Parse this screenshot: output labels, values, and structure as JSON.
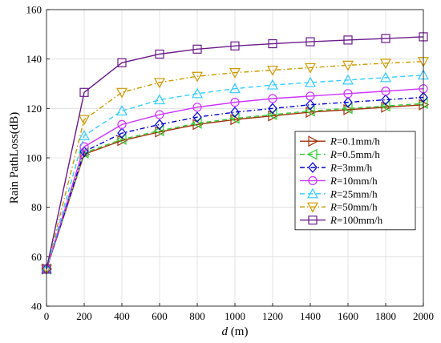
{
  "chart_data": {
    "type": "line",
    "title": "",
    "xlabel_italic": "d",
    "xlabel_rest": " (m)",
    "ylabel": "Rain PathLoss(dB)",
    "xlim": [
      0,
      2000
    ],
    "ylim": [
      40,
      160
    ],
    "xticks": [
      "0",
      "200",
      "400",
      "600",
      "800",
      "1000",
      "1200",
      "1400",
      "1600",
      "1800",
      "2000"
    ],
    "yticks": [
      "40",
      "60",
      "80",
      "100",
      "120",
      "140",
      "160"
    ],
    "grid": true,
    "legend_position": "right-middle",
    "x": [
      0,
      200,
      400,
      600,
      800,
      1000,
      1200,
      1400,
      1600,
      1800,
      2000
    ],
    "series": [
      {
        "name": "R=0.1mm/h",
        "legend_var": "R",
        "legend_rest": "=0.1mm/h",
        "color": "#A0300A",
        "marker": "triangle-right",
        "dash": "solid",
        "values": [
          55,
          101.5,
          107,
          110.5,
          113.5,
          115.5,
          117,
          118.5,
          119.5,
          120.5,
          121.5
        ]
      },
      {
        "name": "R=0.5mm/h",
        "legend_var": "R",
        "legend_rest": "=0.5mm/h",
        "color": "#33CC33",
        "marker": "triangle-left",
        "dash": "dashed",
        "values": [
          55,
          102,
          107.5,
          111,
          114,
          116,
          117.5,
          119,
          120,
          121,
          122
        ]
      },
      {
        "name": "R=3mm/h",
        "legend_var": "R",
        "legend_rest": "=3mm/h",
        "color": "#0000CC",
        "marker": "diamond",
        "dash": "dashdot",
        "values": [
          55,
          102.5,
          110,
          113.5,
          116.5,
          118.5,
          120,
          121.5,
          122.5,
          123.5,
          124.5
        ]
      },
      {
        "name": "R=10mm/h",
        "legend_var": "R",
        "legend_rest": "=10mm/h",
        "color": "#CC33FF",
        "marker": "circle",
        "dash": "solid",
        "values": [
          55,
          104.5,
          113.5,
          117.5,
          120.5,
          122.5,
          124,
          125,
          126,
          127,
          128
        ]
      },
      {
        "name": "R=25mm/h",
        "legend_var": "R",
        "legend_rest": "=25mm/h",
        "color": "#33CCFF",
        "marker": "triangle-up",
        "dash": "dashed",
        "values": [
          55,
          109,
          119,
          123.5,
          126,
          128,
          129.5,
          130.5,
          131.5,
          132.5,
          133.5
        ]
      },
      {
        "name": "R=50mm/h",
        "legend_var": "R",
        "legend_rest": "=50mm/h",
        "color": "#CC9900",
        "marker": "triangle-down",
        "dash": "dashdot",
        "values": [
          55,
          115.5,
          126.5,
          130.5,
          133,
          134.5,
          135.5,
          136.5,
          137.5,
          138.3,
          139
        ]
      },
      {
        "name": "R=100mm/h",
        "legend_var": "R",
        "legend_rest": "=100mm/h",
        "color": "#6A1B8A",
        "marker": "square",
        "dash": "solid",
        "values": [
          55,
          126.5,
          138.5,
          142,
          144,
          145.3,
          146.2,
          147,
          147.7,
          148.3,
          149
        ]
      }
    ]
  }
}
